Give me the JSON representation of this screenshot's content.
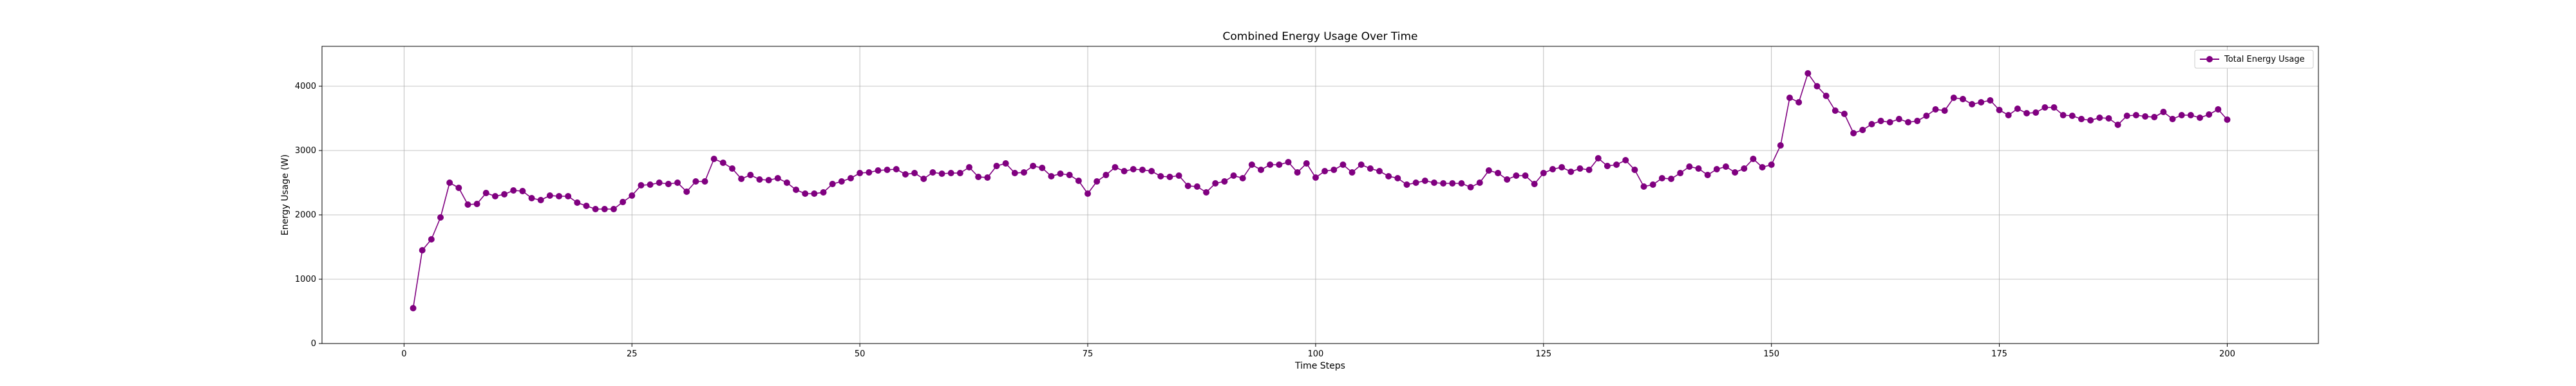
{
  "chart_data": {
    "type": "line",
    "title": "Combined Energy Usage Over Time",
    "xlabel": "Time Steps",
    "ylabel": "Energy Usage (W)",
    "xlim": [
      -9,
      210
    ],
    "ylim": [
      0,
      4620
    ],
    "xticks": [
      0,
      25,
      50,
      75,
      100,
      125,
      150,
      175,
      200
    ],
    "yticks": [
      0,
      1000,
      2000,
      3000,
      4000
    ],
    "grid": true,
    "legend_position": "top-right",
    "series": [
      {
        "name": "Total Energy Usage",
        "color": "#800080",
        "marker": "circle",
        "x": [
          1,
          2,
          3,
          4,
          5,
          6,
          7,
          8,
          9,
          10,
          11,
          12,
          13,
          14,
          15,
          16,
          17,
          18,
          19,
          20,
          21,
          22,
          23,
          24,
          25,
          26,
          27,
          28,
          29,
          30,
          31,
          32,
          33,
          34,
          35,
          36,
          37,
          38,
          39,
          40,
          41,
          42,
          43,
          44,
          45,
          46,
          47,
          48,
          49,
          50,
          51,
          52,
          53,
          54,
          55,
          56,
          57,
          58,
          59,
          60,
          61,
          62,
          63,
          64,
          65,
          66,
          67,
          68,
          69,
          70,
          71,
          72,
          73,
          74,
          75,
          76,
          77,
          78,
          79,
          80,
          81,
          82,
          83,
          84,
          85,
          86,
          87,
          88,
          89,
          90,
          91,
          92,
          93,
          94,
          95,
          96,
          97,
          98,
          99,
          100,
          101,
          102,
          103,
          104,
          105,
          106,
          107,
          108,
          109,
          110,
          111,
          112,
          113,
          114,
          115,
          116,
          117,
          118,
          119,
          120,
          121,
          122,
          123,
          124,
          125,
          126,
          127,
          128,
          129,
          130,
          131,
          132,
          133,
          134,
          135,
          136,
          137,
          138,
          139,
          140,
          141,
          142,
          143,
          144,
          145,
          146,
          147,
          148,
          149,
          150,
          151,
          152,
          153,
          154,
          155,
          156,
          157,
          158,
          159,
          160,
          161,
          162,
          163,
          164,
          165,
          166,
          167,
          168,
          169,
          170,
          171,
          172,
          173,
          174,
          175,
          176,
          177,
          178,
          179,
          180,
          181,
          182,
          183,
          184,
          185,
          186,
          187,
          188,
          189,
          190,
          191,
          192,
          193,
          194,
          195,
          196,
          197,
          198,
          199,
          200
        ],
        "y": [
          550,
          1450,
          1620,
          1960,
          2500,
          2420,
          2160,
          2170,
          2340,
          2290,
          2320,
          2380,
          2370,
          2260,
          2230,
          2300,
          2290,
          2290,
          2190,
          2140,
          2090,
          2090,
          2090,
          2200,
          2300,
          2460,
          2470,
          2500,
          2480,
          2500,
          2360,
          2520,
          2520,
          2870,
          2810,
          2720,
          2560,
          2620,
          2550,
          2540,
          2570,
          2500,
          2390,
          2330,
          2330,
          2350,
          2480,
          2520,
          2570,
          2650,
          2660,
          2690,
          2700,
          2710,
          2630,
          2650,
          2560,
          2660,
          2640,
          2650,
          2650,
          2740,
          2590,
          2580,
          2760,
          2800,
          2650,
          2660,
          2760,
          2730,
          2600,
          2640,
          2620,
          2530,
          2330,
          2520,
          2620,
          2740,
          2680,
          2710,
          2700,
          2680,
          2600,
          2590,
          2610,
          2450,
          2440,
          2350,
          2490,
          2520,
          2610,
          2570,
          2780,
          2700,
          2780,
          2780,
          2820,
          2660,
          2800,
          2580,
          2680,
          2700,
          2780,
          2660,
          2780,
          2720,
          2680,
          2600,
          2570,
          2470,
          2500,
          2530,
          2500,
          2490,
          2490,
          2490,
          2430,
          2500,
          2690,
          2650,
          2550,
          2610,
          2610,
          2480,
          2650,
          2710,
          2740,
          2670,
          2720,
          2700,
          2880,
          2760,
          2780,
          2850,
          2700,
          2440,
          2470,
          2570,
          2560,
          2650,
          2750,
          2720,
          2620,
          2710,
          2750,
          2660,
          2720,
          2870,
          2740,
          2780,
          3080,
          3820,
          3750,
          4200,
          4000,
          3850,
          3620,
          3570,
          3270,
          3320,
          3410,
          3460,
          3440,
          3490,
          3440,
          3460,
          3540,
          3640,
          3620,
          3820,
          3800,
          3720,
          3750,
          3780,
          3630,
          3550,
          3650,
          3580,
          3590,
          3670,
          3670,
          3550,
          3540,
          3490,
          3470,
          3510,
          3500,
          3400,
          3540,
          3550,
          3530,
          3520,
          3600,
          3490,
          3550,
          3550,
          3510,
          3560,
          3640,
          3480
        ]
      }
    ]
  }
}
